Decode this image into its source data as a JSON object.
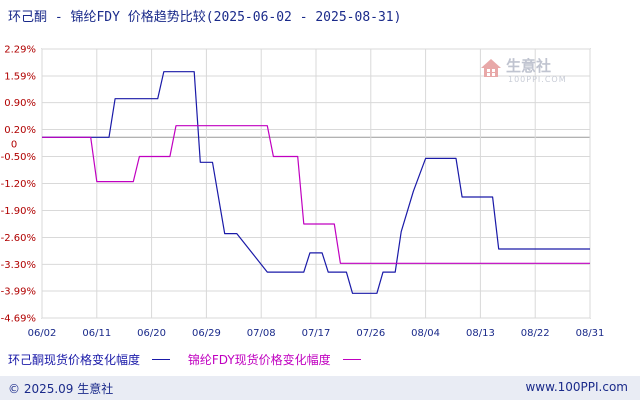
{
  "title": "环己酮 - 锦纶FDY 价格趋势比较(2025-06-02 - 2025-08-31)",
  "watermark": {
    "brand": "生意社",
    "site": "100PPI.COM"
  },
  "footer": {
    "copyright": "© 2025.09 生意社",
    "url": "www.100PPI.com"
  },
  "colors": {
    "series1": "#1a1aa8",
    "series2": "#c000c0",
    "y_tick": "#b00000",
    "x_tick": "#1a2a8a",
    "zero_line": "#999999",
    "grid": "#d9d9d9"
  },
  "chart_data": {
    "type": "line",
    "title": "环己酮 - 锦纶FDY 价格趋势比较(2025-06-02 - 2025-08-31)",
    "xlabel": "",
    "ylabel": "",
    "ylim": [
      -4.69,
      2.29
    ],
    "x_range": [
      "2025-06-02",
      "2025-08-31"
    ],
    "x_ticks": [
      "06/02",
      "06/11",
      "06/20",
      "06/29",
      "07/08",
      "07/17",
      "07/26",
      "08/04",
      "08/13",
      "08/22",
      "08/31"
    ],
    "y_ticks": [
      "2.29%",
      "1.59%",
      "0.90%",
      "0.20%",
      "-0.50%",
      "-1.20%",
      "-1.90%",
      "-2.60%",
      "-3.30%",
      "-3.99%",
      "-4.69%"
    ],
    "y_tick_values": [
      2.29,
      1.59,
      0.9,
      0.2,
      -0.5,
      -1.2,
      -1.9,
      -2.6,
      -3.3,
      -3.99,
      -4.69
    ],
    "zero_label": "0",
    "grid": true,
    "legend": "bottom",
    "series": [
      {
        "name": "环己酮现货价格变化幅度",
        "color": "#1a1aa8",
        "points": [
          [
            "2025-06-02",
            0.0
          ],
          [
            "2025-06-10",
            0.0
          ],
          [
            "2025-06-13",
            0.0
          ],
          [
            "2025-06-14",
            1.0
          ],
          [
            "2025-06-21",
            1.0
          ],
          [
            "2025-06-22",
            1.7
          ],
          [
            "2025-06-27",
            1.7
          ],
          [
            "2025-06-28",
            -0.65
          ],
          [
            "2025-06-30",
            -0.65
          ],
          [
            "2025-07-02",
            -2.5
          ],
          [
            "2025-07-04",
            -2.5
          ],
          [
            "2025-07-09",
            -3.5
          ],
          [
            "2025-07-15",
            -3.5
          ],
          [
            "2025-07-16",
            -3.0
          ],
          [
            "2025-07-18",
            -3.0
          ],
          [
            "2025-07-19",
            -3.5
          ],
          [
            "2025-07-22",
            -3.5
          ],
          [
            "2025-07-23",
            -4.05
          ],
          [
            "2025-07-27",
            -4.05
          ],
          [
            "2025-07-28",
            -3.5
          ],
          [
            "2025-07-30",
            -3.5
          ],
          [
            "2025-07-31",
            -2.45
          ],
          [
            "2025-08-02",
            -1.4
          ],
          [
            "2025-08-04",
            -0.55
          ],
          [
            "2025-08-09",
            -0.55
          ],
          [
            "2025-08-10",
            -1.55
          ],
          [
            "2025-08-15",
            -1.55
          ],
          [
            "2025-08-16",
            -2.9
          ],
          [
            "2025-08-31",
            -2.9
          ]
        ]
      },
      {
        "name": "锦纶FDY现货价格变化幅度",
        "color": "#c000c0",
        "points": [
          [
            "2025-06-02",
            0.0
          ],
          [
            "2025-06-10",
            0.0
          ],
          [
            "2025-06-11",
            -1.15
          ],
          [
            "2025-06-17",
            -1.15
          ],
          [
            "2025-06-18",
            -0.5
          ],
          [
            "2025-06-23",
            -0.5
          ],
          [
            "2025-06-24",
            0.3
          ],
          [
            "2025-07-09",
            0.3
          ],
          [
            "2025-07-10",
            -0.5
          ],
          [
            "2025-07-14",
            -0.5
          ],
          [
            "2025-07-15",
            -2.25
          ],
          [
            "2025-07-20",
            -2.25
          ],
          [
            "2025-07-21",
            -3.27
          ],
          [
            "2025-08-31",
            -3.27
          ]
        ]
      }
    ]
  }
}
